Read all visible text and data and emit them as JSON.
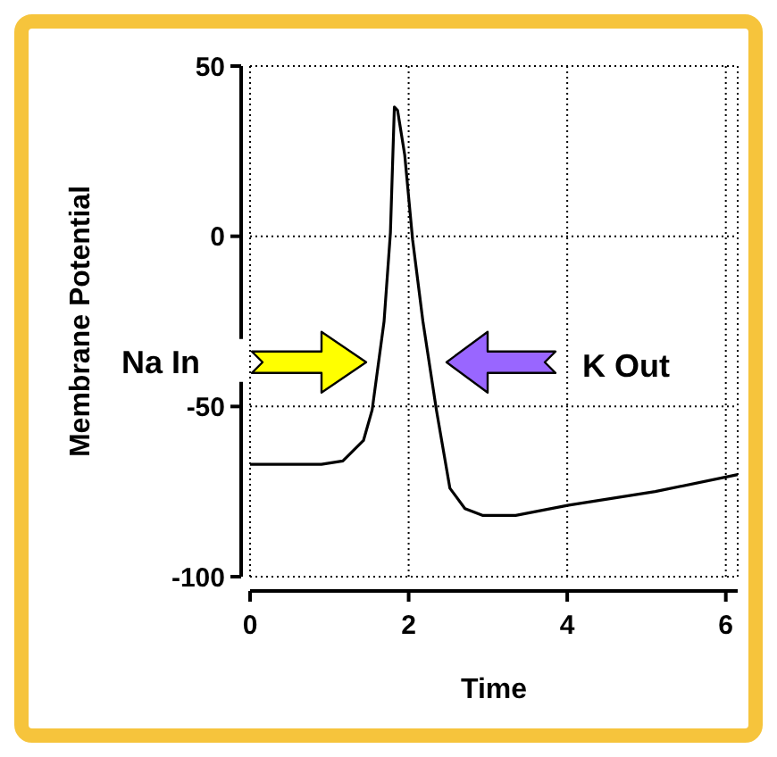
{
  "chart_data": {
    "type": "line",
    "xlabel": "Time",
    "ylabel": "Membrane Potential",
    "x": [
      0,
      0.9,
      1.17,
      1.43,
      1.54,
      1.69,
      1.77,
      1.82,
      1.86,
      1.95,
      2.05,
      2.18,
      2.35,
      2.52,
      2.71,
      2.93,
      3.35,
      4.02,
      5.11,
      6.15
    ],
    "series": [
      {
        "color": "#000000",
        "values": [
          -67,
          -67,
          -66,
          -60,
          -51,
          -25,
          1,
          38,
          37,
          24,
          -1,
          -25,
          -51,
          -74,
          -80,
          -82,
          -82,
          -79,
          -75,
          -70
        ]
      }
    ],
    "xlim": [
      0,
      6.15
    ],
    "xticks": [
      0,
      2,
      4,
      6
    ],
    "ylim": [
      -100,
      50
    ],
    "yticks": [
      -100,
      -50,
      0,
      50
    ],
    "grid": true,
    "marker": "none",
    "line_style": "solid",
    "annotations": [
      "Na In",
      "K Out"
    ]
  }
}
